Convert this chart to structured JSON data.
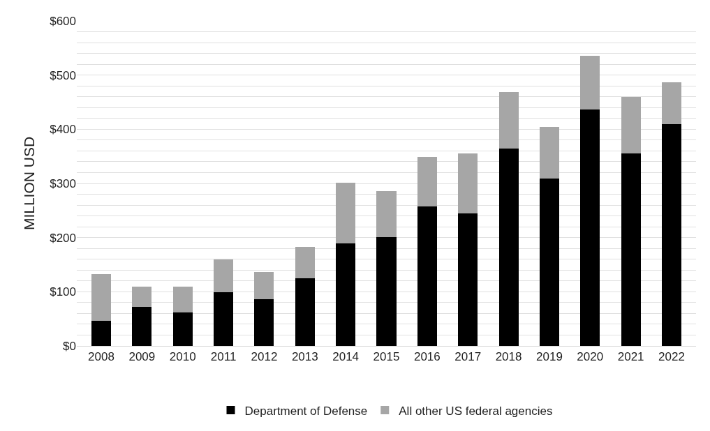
{
  "chart_data": {
    "type": "bar",
    "stacked": true,
    "ylabel": "MILLION USD",
    "categories": [
      "2008",
      "2009",
      "2010",
      "2011",
      "2012",
      "2013",
      "2014",
      "2015",
      "2016",
      "2017",
      "2018",
      "2019",
      "2020",
      "2021",
      "2022"
    ],
    "series": [
      {
        "name": "Department of Defense",
        "color": "#000000",
        "values": [
          46,
          72,
          62,
          99,
          86,
          125,
          189,
          201,
          257,
          245,
          365,
          309,
          437,
          355,
          410
        ]
      },
      {
        "name": "All other US federal agencies",
        "color": "#a6a6a6",
        "values": [
          86,
          38,
          47,
          61,
          51,
          58,
          112,
          85,
          92,
          111,
          104,
          95,
          98,
          105,
          77
        ]
      }
    ],
    "ylim": [
      0,
      600
    ],
    "yticks": [
      {
        "value": 0,
        "label": "$0"
      },
      {
        "value": 20,
        "label": null
      },
      {
        "value": 40,
        "label": null
      },
      {
        "value": 60,
        "label": null
      },
      {
        "value": 80,
        "label": null
      },
      {
        "value": 100,
        "label": "$100"
      },
      {
        "value": 120,
        "label": null
      },
      {
        "value": 140,
        "label": null
      },
      {
        "value": 160,
        "label": null
      },
      {
        "value": 180,
        "label": null
      },
      {
        "value": 200,
        "label": "$200"
      },
      {
        "value": 220,
        "label": null
      },
      {
        "value": 240,
        "label": null
      },
      {
        "value": 260,
        "label": null
      },
      {
        "value": 280,
        "label": null
      },
      {
        "value": 300,
        "label": "$300"
      },
      {
        "value": 320,
        "label": null
      },
      {
        "value": 340,
        "label": null
      },
      {
        "value": 360,
        "label": null
      },
      {
        "value": 380,
        "label": null
      },
      {
        "value": 400,
        "label": "$400"
      },
      {
        "value": 420,
        "label": null
      },
      {
        "value": 440,
        "label": null
      },
      {
        "value": 460,
        "label": null
      },
      {
        "value": 480,
        "label": null
      },
      {
        "value": 500,
        "label": "$500"
      },
      {
        "value": 520,
        "label": null
      },
      {
        "value": 540,
        "label": null
      },
      {
        "value": 560,
        "label": null
      },
      {
        "value": 580,
        "label": null
      },
      {
        "value": 600,
        "label": "$600"
      }
    ],
    "grid": "y",
    "legend": "bottom"
  }
}
